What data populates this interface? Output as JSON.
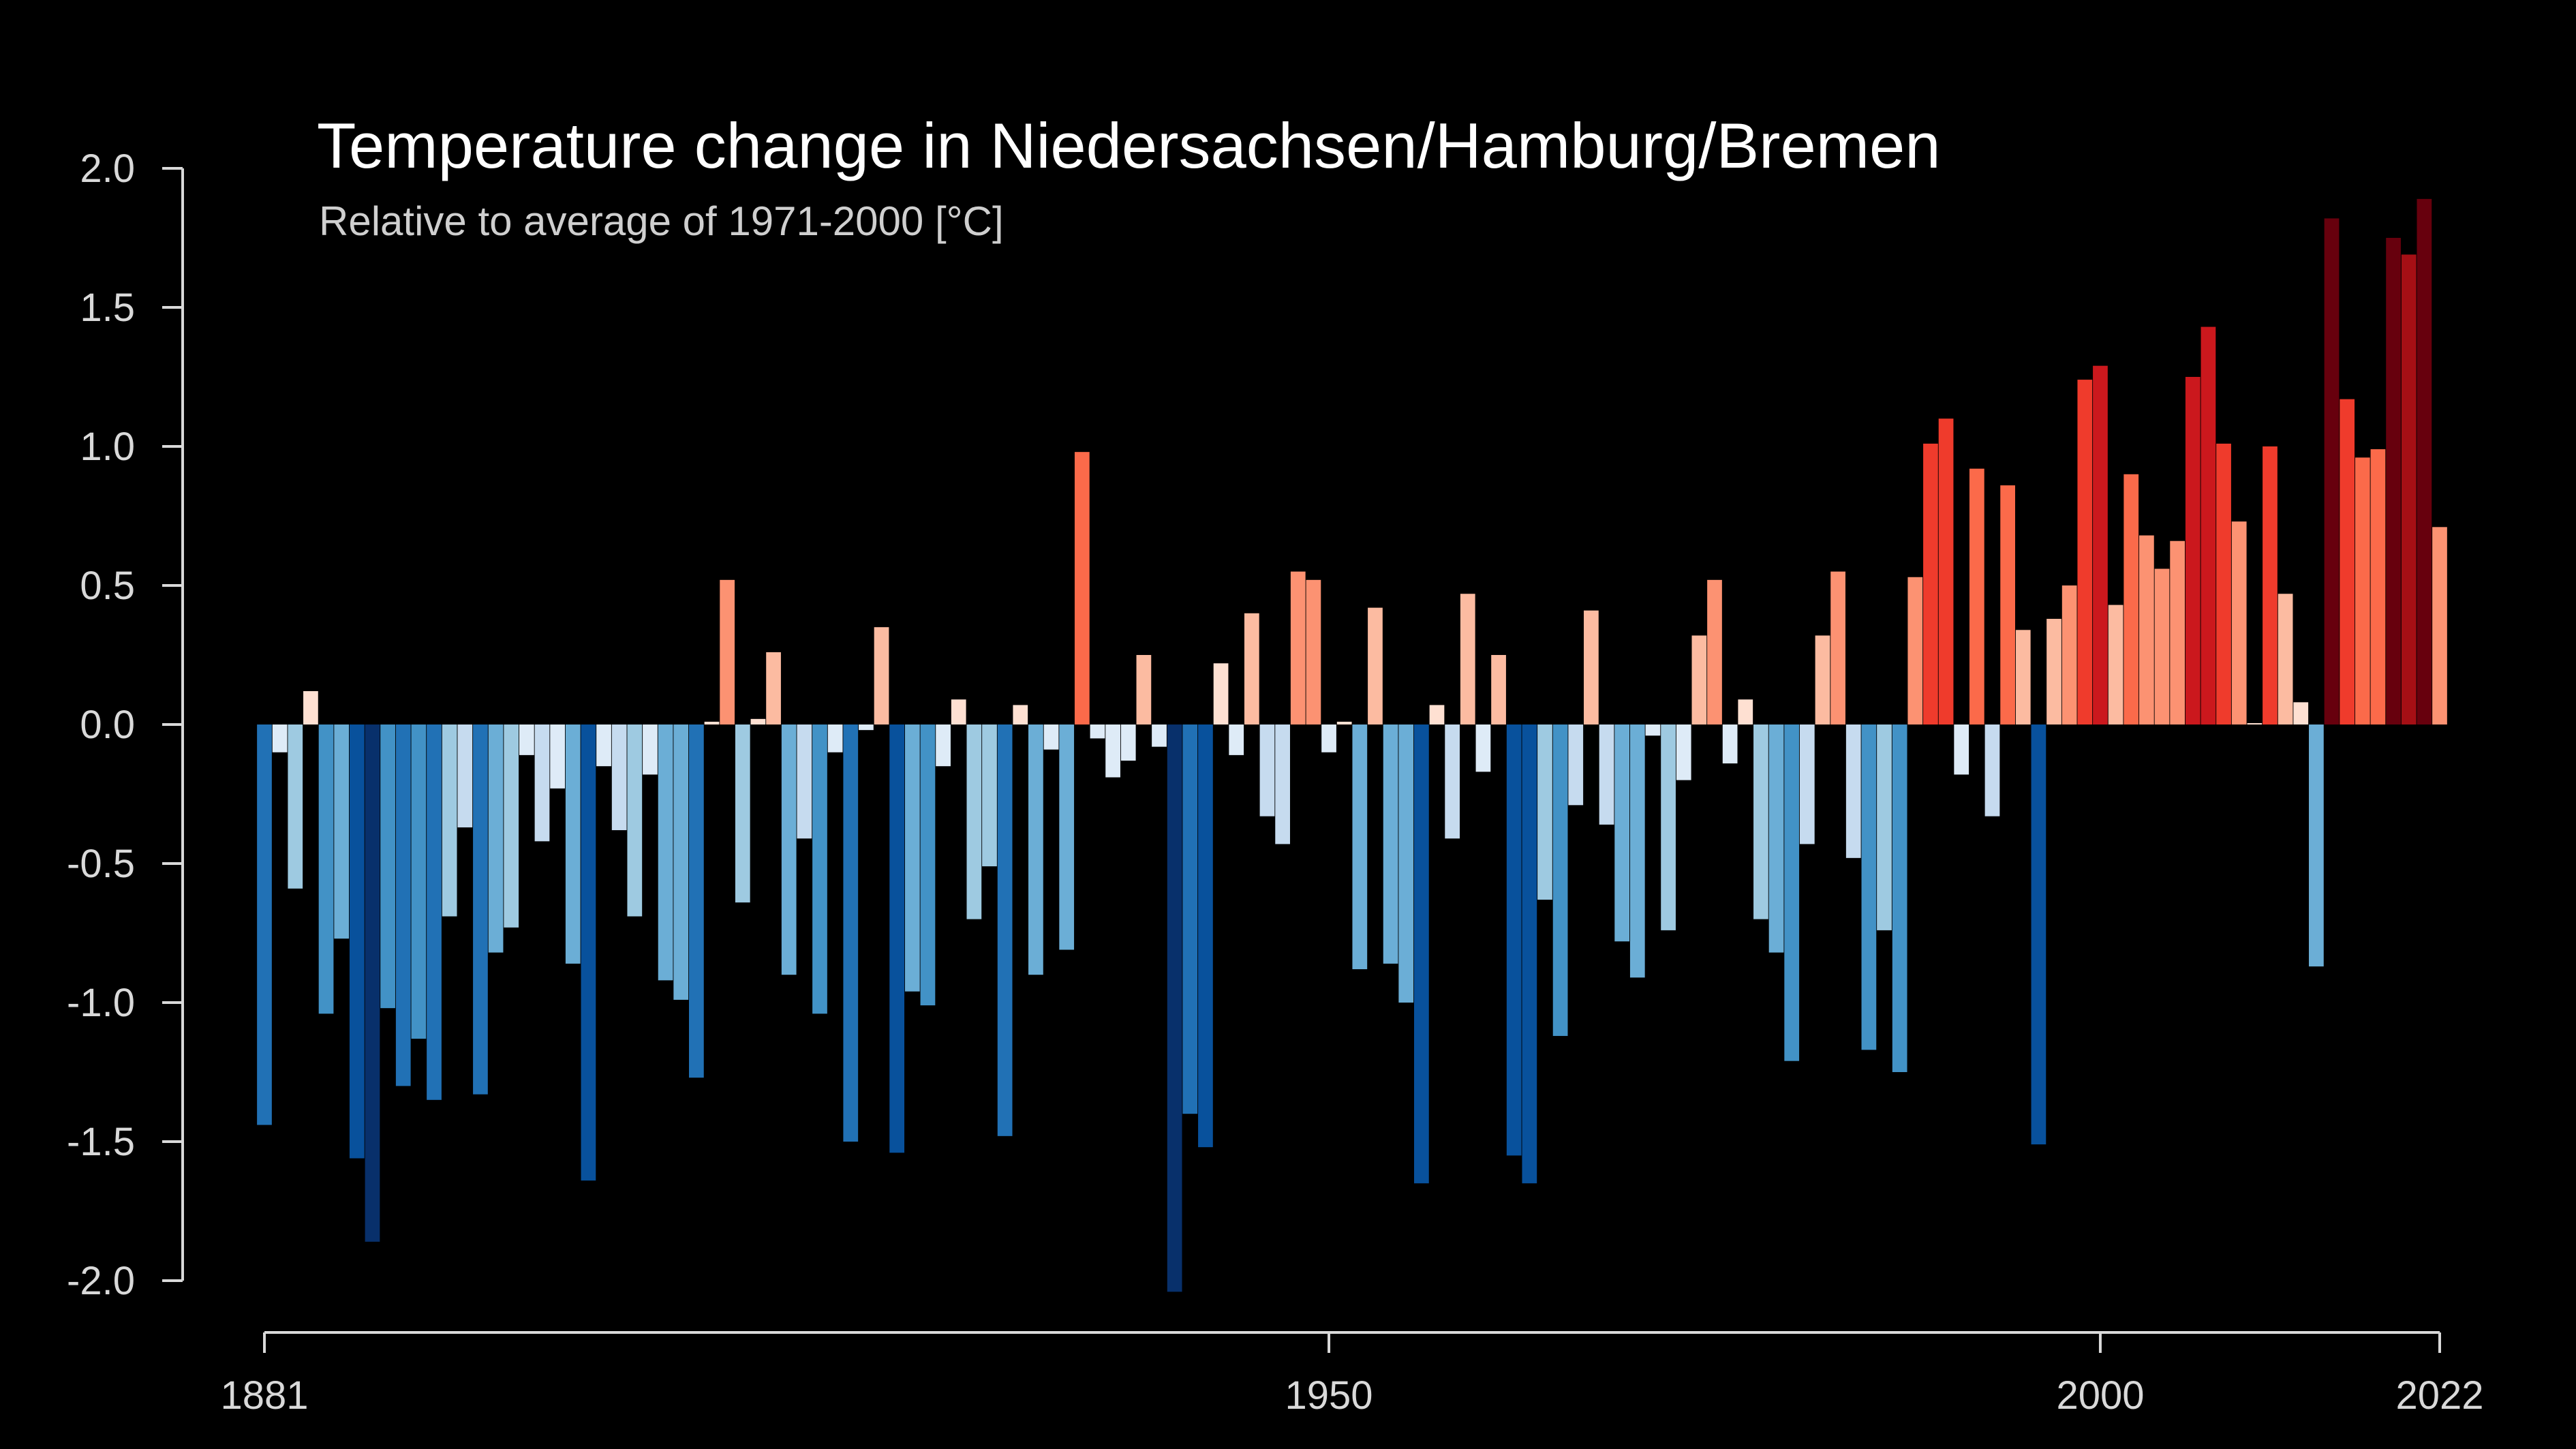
{
  "chart_data": {
    "type": "bar",
    "title": "Temperature change in Niedersachsen/Hamburg/Bremen",
    "subtitle": "Relative to average of 1971-2000  [°C]",
    "xlabel": "",
    "ylabel": "",
    "x_start": 1881,
    "x_end": 2022,
    "ylim": [
      -2.0,
      2.0
    ],
    "y_ticks": [
      "2.0",
      "1.5",
      "1.0",
      "0.5",
      "0.0",
      "-0.5",
      "-1.0",
      "-1.5",
      "-2.0"
    ],
    "y_tick_values": [
      2.0,
      1.5,
      1.0,
      0.5,
      0.0,
      -0.5,
      -1.0,
      -1.5,
      -2.0
    ],
    "x_ticks": [
      "1881",
      "1950",
      "2000",
      "2022"
    ],
    "x_tick_values": [
      1881,
      1950,
      2000,
      2022
    ],
    "grid": false,
    "legend": "none",
    "colormap": "RdBu_r (blue = below average, red = above average)",
    "values": [
      -1.44,
      -0.1,
      -0.59,
      0.12,
      -1.04,
      -0.77,
      -1.56,
      -1.86,
      -1.02,
      -1.3,
      -1.13,
      -1.35,
      -0.69,
      -0.37,
      -1.33,
      -0.82,
      -0.73,
      -0.11,
      -0.42,
      -0.23,
      -0.86,
      -1.64,
      -0.15,
      -0.38,
      -0.69,
      -0.18,
      -0.92,
      -0.99,
      -1.27,
      0.01,
      0.52,
      -0.64,
      0.02,
      0.26,
      -0.9,
      -0.41,
      -1.04,
      -0.1,
      -1.5,
      -0.02,
      0.35,
      -1.54,
      -0.96,
      -1.01,
      -0.15,
      0.09,
      -0.7,
      -0.51,
      -1.48,
      0.07,
      -0.9,
      -0.09,
      -0.81,
      0.98,
      -0.05,
      -0.19,
      -0.13,
      0.25,
      -0.08,
      -2.04,
      -1.4,
      -1.52,
      0.22,
      -0.11,
      0.4,
      -0.33,
      -0.43,
      0.55,
      0.52,
      -0.1,
      0.01,
      -0.88,
      0.42,
      -0.86,
      -1.0,
      -1.65,
      0.07,
      -0.41,
      0.47,
      -0.17,
      0.25,
      -1.55,
      -1.65,
      -0.63,
      -1.12,
      -0.29,
      0.41,
      -0.36,
      -0.78,
      -0.91,
      -0.04,
      -0.74,
      -0.2,
      0.32,
      0.52,
      -0.14,
      0.09,
      -0.7,
      -0.82,
      -1.21,
      -0.43,
      0.32,
      0.55,
      -0.48,
      -1.17,
      -0.74,
      -1.25,
      0.53,
      1.01,
      1.1,
      -0.18,
      0.92,
      -0.33,
      0.86,
      0.34,
      -1.51,
      0.38,
      0.5,
      1.24,
      1.29,
      0.43,
      0.9,
      0.68,
      0.56,
      0.66,
      1.25,
      1.43,
      1.01,
      0.73,
      0.0,
      1.0,
      0.47,
      0.08,
      -0.87,
      1.82,
      1.17,
      0.96,
      0.99,
      1.75,
      1.69,
      1.89,
      0.71
    ]
  }
}
